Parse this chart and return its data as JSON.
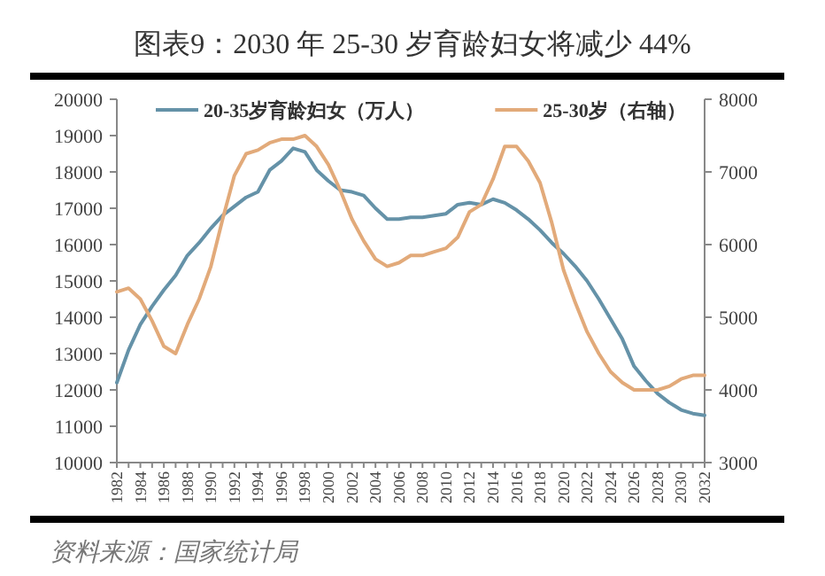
{
  "chart_data": {
    "type": "line",
    "title": "图表9：2030 年 25-30 岁育龄妇女将减少 44%",
    "annotations": [
      "资料来源：国家统计局"
    ],
    "x": [
      1982,
      1983,
      1984,
      1985,
      1986,
      1987,
      1988,
      1989,
      1990,
      1991,
      1992,
      1993,
      1994,
      1995,
      1996,
      1997,
      1998,
      1999,
      2000,
      2001,
      2002,
      2003,
      2004,
      2005,
      2006,
      2007,
      2008,
      2009,
      2010,
      2011,
      2012,
      2013,
      2014,
      2015,
      2016,
      2017,
      2018,
      2019,
      2020,
      2021,
      2022,
      2023,
      2024,
      2025,
      2026,
      2027,
      2028,
      2029,
      2030,
      2031,
      2032
    ],
    "series": [
      {
        "name": "20-35岁育龄妇女（万人）",
        "color": "#6592a8",
        "values": [
          12200,
          13100,
          13800,
          14300,
          14750,
          15150,
          15700,
          16050,
          16450,
          16800,
          17050,
          17300,
          17450,
          18050,
          18300,
          18650,
          18550,
          18050,
          17750,
          17500,
          17450,
          17350,
          17000,
          16700,
          16700,
          16750,
          16750,
          16800,
          16850,
          17100,
          17150,
          17100,
          17250,
          17150,
          16950,
          16700,
          16400,
          16050,
          15750,
          15400,
          15000,
          14500,
          13950,
          13400,
          12650,
          12250,
          11900,
          11650,
          11450,
          11350,
          11300
        ]
      },
      {
        "name": "25-30岁（右轴）",
        "color": "#e2aa7a",
        "axis": "y2",
        "values": [
          5350,
          5400,
          5250,
          4950,
          4600,
          4500,
          4900,
          5250,
          5700,
          6350,
          6950,
          7250,
          7300,
          7400,
          7450,
          7450,
          7500,
          7350,
          7100,
          6750,
          6350,
          6050,
          5800,
          5700,
          5750,
          5850,
          5850,
          5900,
          5950,
          6100,
          6450,
          6550,
          6900,
          7350,
          7350,
          7150,
          6850,
          6300,
          5650,
          5200,
          4800,
          4500,
          4250,
          4100,
          4000,
          4000,
          4000,
          4050,
          4150,
          4200,
          4200
        ]
      }
    ],
    "xlim": [
      1982,
      2032
    ],
    "xticks": [
      1982,
      {
        "value": 1983,
        "label": null
      },
      1984,
      {
        "value": 1985,
        "label": null
      },
      1986,
      {
        "value": 1987,
        "label": null
      },
      1988,
      {
        "value": 1989,
        "label": null
      },
      1990,
      {
        "value": 1991,
        "label": null
      },
      1992,
      {
        "value": 1993,
        "label": null
      },
      1994,
      {
        "value": 1995,
        "label": null
      },
      1996,
      {
        "value": 1997,
        "label": null
      },
      1998,
      {
        "value": 1999,
        "label": null
      },
      2000,
      {
        "value": 2001,
        "label": null
      },
      2002,
      {
        "value": 2003,
        "label": null
      },
      2004,
      {
        "value": 2005,
        "label": null
      },
      2006,
      {
        "value": 2007,
        "label": null
      },
      2008,
      {
        "value": 2009,
        "label": null
      },
      2010,
      {
        "value": 2011,
        "label": null
      },
      2012,
      {
        "value": 2013,
        "label": null
      },
      2014,
      {
        "value": 2015,
        "label": null
      },
      2016,
      {
        "value": 2017,
        "label": null
      },
      2018,
      {
        "value": 2019,
        "label": null
      },
      2020,
      {
        "value": 2021,
        "label": null
      },
      2022,
      {
        "value": 2023,
        "label": null
      },
      2024,
      {
        "value": 2025,
        "label": null
      },
      2026,
      {
        "value": 2027,
        "label": null
      },
      2028,
      {
        "value": 2029,
        "label": null
      },
      2030,
      {
        "value": 2031,
        "label": null
      },
      2032
    ],
    "ylim": [
      10000,
      20000
    ],
    "yticks": [
      10000,
      11000,
      12000,
      13000,
      14000,
      15000,
      16000,
      17000,
      18000,
      19000,
      20000
    ],
    "y2lim": [
      3000,
      8000
    ],
    "y2ticks": [
      3000,
      4000,
      5000,
      6000,
      7000,
      8000
    ],
    "legend": "top"
  }
}
